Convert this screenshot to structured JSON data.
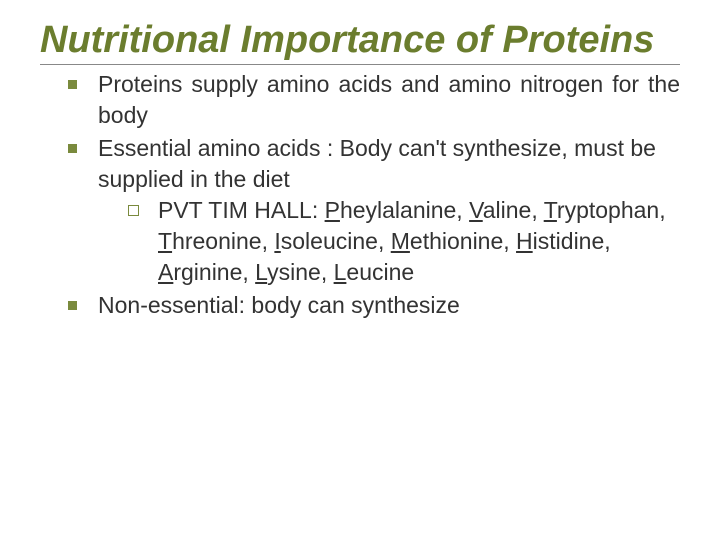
{
  "title_color": "#6b7d2e",
  "text_color": "#333333",
  "bullet_color": "#7a8a3d",
  "background_color": "#ffffff",
  "title_fontsize": 38,
  "body_fontsize": 23,
  "title": "Nutritional Importance of Proteins",
  "bullets": [
    {
      "text": "Proteins supply amino acids and amino nitrogen for the body",
      "justify": true
    },
    {
      "text": "Essential amino acids : Body can't synthesize, must be supplied in the diet",
      "sub": [
        {
          "prefix": "PVT TIM HALL: ",
          "items": [
            {
              "u": "P",
              "rest": "heylalanine"
            },
            {
              "u": "V",
              "rest": "aline"
            },
            {
              "u": "T",
              "rest": "ryptophan"
            },
            {
              "u": "T",
              "rest": "hreonine"
            },
            {
              "u": "I",
              "rest": "soleucine"
            },
            {
              "u": "M",
              "rest": "ethionine"
            },
            {
              "u": "H",
              "rest": "istidine"
            },
            {
              "u": "A",
              "rest": "rginine"
            },
            {
              "u": "L",
              "rest": "ysine"
            },
            {
              "u": "L",
              "rest": "eucine"
            }
          ]
        }
      ]
    },
    {
      "text": "Non-essential: body can synthesize"
    }
  ]
}
